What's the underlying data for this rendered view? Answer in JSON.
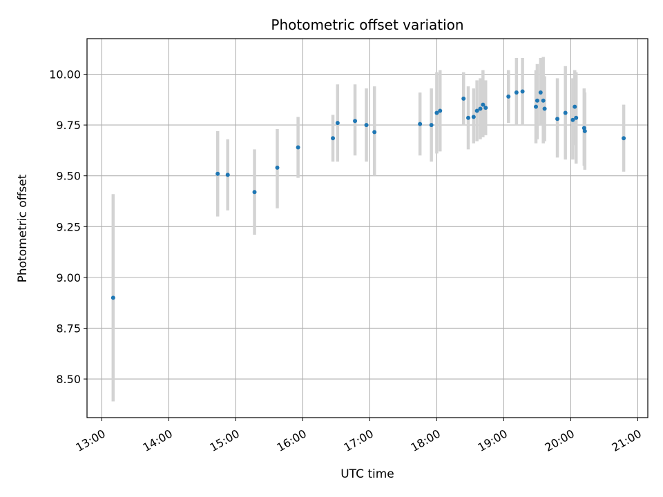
{
  "chart_data": {
    "type": "scatter",
    "title": "Photometric offset variation",
    "xlabel": "UTC time",
    "ylabel": "Photometric offset",
    "x_unit": "hours UTC",
    "xlim": [
      12.78,
      21.15
    ],
    "ylim": [
      8.31,
      10.175
    ],
    "x_ticks": [
      {
        "value": 13,
        "label": "13:00"
      },
      {
        "value": 14,
        "label": "14:00"
      },
      {
        "value": 15,
        "label": "15:00"
      },
      {
        "value": 16,
        "label": "16:00"
      },
      {
        "value": 17,
        "label": "17:00"
      },
      {
        "value": 18,
        "label": "18:00"
      },
      {
        "value": 19,
        "label": "19:00"
      },
      {
        "value": 20,
        "label": "20:00"
      },
      {
        "value": 21,
        "label": "21:00"
      }
    ],
    "y_ticks": [
      {
        "value": 8.5,
        "label": "8.50"
      },
      {
        "value": 8.75,
        "label": "8.75"
      },
      {
        "value": 9.0,
        "label": "9.00"
      },
      {
        "value": 9.25,
        "label": "9.25"
      },
      {
        "value": 9.5,
        "label": "9.50"
      },
      {
        "value": 9.75,
        "label": "9.75"
      },
      {
        "value": 10.0,
        "label": "10.00"
      }
    ],
    "grid": true,
    "colors": {
      "point": "#1f77b4",
      "errorbar": "#d3d3d3",
      "grid": "#b0b0b0",
      "axis": "#000000"
    },
    "series": [
      {
        "name": "Photometric offset",
        "points": [
          {
            "x": 13.17,
            "y": 8.9,
            "ylo": 8.39,
            "yhi": 9.41
          },
          {
            "x": 14.73,
            "y": 9.51,
            "ylo": 9.3,
            "yhi": 9.72
          },
          {
            "x": 14.88,
            "y": 9.505,
            "ylo": 9.33,
            "yhi": 9.68
          },
          {
            "x": 15.28,
            "y": 9.42,
            "ylo": 9.21,
            "yhi": 9.63
          },
          {
            "x": 15.62,
            "y": 9.54,
            "ylo": 9.34,
            "yhi": 9.73
          },
          {
            "x": 15.93,
            "y": 9.64,
            "ylo": 9.49,
            "yhi": 9.79
          },
          {
            "x": 16.45,
            "y": 9.685,
            "ylo": 9.57,
            "yhi": 9.8
          },
          {
            "x": 16.52,
            "y": 9.76,
            "ylo": 9.57,
            "yhi": 9.95
          },
          {
            "x": 16.78,
            "y": 9.77,
            "ylo": 9.6,
            "yhi": 9.95
          },
          {
            "x": 16.95,
            "y": 9.75,
            "ylo": 9.57,
            "yhi": 9.93
          },
          {
            "x": 17.07,
            "y": 9.715,
            "ylo": 9.5,
            "yhi": 9.94
          },
          {
            "x": 17.75,
            "y": 9.755,
            "ylo": 9.6,
            "yhi": 9.91
          },
          {
            "x": 17.92,
            "y": 9.75,
            "ylo": 9.57,
            "yhi": 9.93
          },
          {
            "x": 18.0,
            "y": 9.81,
            "ylo": 9.61,
            "yhi": 10.01
          },
          {
            "x": 18.05,
            "y": 9.82,
            "ylo": 9.62,
            "yhi": 10.02
          },
          {
            "x": 18.4,
            "y": 9.88,
            "ylo": 9.75,
            "yhi": 10.01
          },
          {
            "x": 18.47,
            "y": 9.785,
            "ylo": 9.63,
            "yhi": 9.94
          },
          {
            "x": 18.55,
            "y": 9.79,
            "ylo": 9.66,
            "yhi": 9.93
          },
          {
            "x": 18.6,
            "y": 9.82,
            "ylo": 9.67,
            "yhi": 9.97
          },
          {
            "x": 18.65,
            "y": 9.83,
            "ylo": 9.68,
            "yhi": 9.98
          },
          {
            "x": 18.69,
            "y": 9.85,
            "ylo": 9.69,
            "yhi": 10.02
          },
          {
            "x": 18.73,
            "y": 9.835,
            "ylo": 9.7,
            "yhi": 9.97
          },
          {
            "x": 19.07,
            "y": 9.89,
            "ylo": 9.76,
            "yhi": 10.02
          },
          {
            "x": 19.19,
            "y": 9.91,
            "ylo": 9.75,
            "yhi": 10.08
          },
          {
            "x": 19.28,
            "y": 9.915,
            "ylo": 9.75,
            "yhi": 10.08
          },
          {
            "x": 19.48,
            "y": 9.84,
            "ylo": 9.66,
            "yhi": 10.02
          },
          {
            "x": 19.5,
            "y": 9.87,
            "ylo": 9.68,
            "yhi": 10.05
          },
          {
            "x": 19.55,
            "y": 9.91,
            "ylo": 9.75,
            "yhi": 10.08
          },
          {
            "x": 19.59,
            "y": 9.87,
            "ylo": 9.66,
            "yhi": 10.085
          },
          {
            "x": 19.61,
            "y": 9.83,
            "ylo": 9.67,
            "yhi": 9.99
          },
          {
            "x": 19.8,
            "y": 9.78,
            "ylo": 9.59,
            "yhi": 9.98
          },
          {
            "x": 19.92,
            "y": 9.81,
            "ylo": 9.58,
            "yhi": 10.04
          },
          {
            "x": 20.03,
            "y": 9.775,
            "ylo": 9.58,
            "yhi": 9.98
          },
          {
            "x": 20.06,
            "y": 9.84,
            "ylo": 9.65,
            "yhi": 10.02
          },
          {
            "x": 20.08,
            "y": 9.785,
            "ylo": 9.56,
            "yhi": 10.01
          },
          {
            "x": 20.2,
            "y": 9.735,
            "ylo": 9.55,
            "yhi": 9.93
          },
          {
            "x": 20.21,
            "y": 9.72,
            "ylo": 9.53,
            "yhi": 9.91
          },
          {
            "x": 20.79,
            "y": 9.685,
            "ylo": 9.52,
            "yhi": 9.85
          }
        ]
      }
    ]
  }
}
